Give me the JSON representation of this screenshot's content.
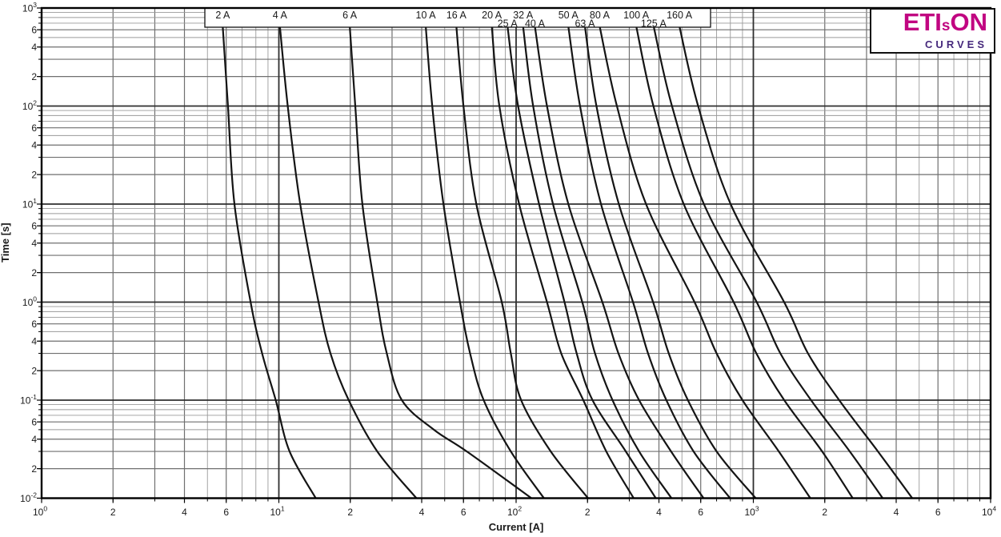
{
  "page": {
    "background": "#ffffff"
  },
  "logo": {
    "eti": "ETI",
    "s": "s",
    "on": "ON",
    "curves": "CURVES",
    "magenta": "#c10581",
    "purple": "#46297c"
  },
  "colors": {
    "curve": "#141414",
    "grid_minor": "#9a9a9a",
    "grid_minor_emph": "#6f6f6f",
    "grid_major": "#2f2f2f",
    "frame": "#000000",
    "text": "#1a1a1a",
    "band_fill": "#ffffff",
    "band_border": "#111111"
  },
  "chart_data": {
    "type": "line",
    "title": "",
    "xlabel": "Current [A]",
    "ylabel": "Time [s]",
    "xscale": "log",
    "yscale": "log",
    "xlim": [
      1,
      10000
    ],
    "ylim": [
      0.01,
      1000
    ],
    "grid": true,
    "legend_position": "top-band",
    "points_format": "[current_A, time_s]",
    "x_ticks": [
      {
        "m": "10",
        "e": "0",
        "v": 1
      },
      {
        "t": "2",
        "v": 2
      },
      {
        "t": "4",
        "v": 4
      },
      {
        "t": "6",
        "v": 6
      },
      {
        "m": "10",
        "e": "1",
        "v": 10
      },
      {
        "t": "2",
        "v": 20
      },
      {
        "t": "4",
        "v": 40
      },
      {
        "t": "6",
        "v": 60
      },
      {
        "m": "10",
        "e": "2",
        "v": 100
      },
      {
        "t": "2",
        "v": 200
      },
      {
        "t": "4",
        "v": 400
      },
      {
        "t": "6",
        "v": 600
      },
      {
        "m": "10",
        "e": "3",
        "v": 1000
      },
      {
        "t": "2",
        "v": 2000
      },
      {
        "t": "4",
        "v": 4000
      },
      {
        "t": "6",
        "v": 6000
      },
      {
        "m": "10",
        "e": "4",
        "v": 10000
      }
    ],
    "y_ticks": [
      {
        "m": "10",
        "e": "3",
        "v": 1000
      },
      {
        "t": "6",
        "v": 600
      },
      {
        "t": "4",
        "v": 400
      },
      {
        "t": "2",
        "v": 200
      },
      {
        "m": "10",
        "e": "2",
        "v": 100
      },
      {
        "t": "6",
        "v": 60
      },
      {
        "t": "4",
        "v": 40
      },
      {
        "t": "2",
        "v": 20
      },
      {
        "m": "10",
        "e": "1",
        "v": 10
      },
      {
        "t": "6",
        "v": 6
      },
      {
        "t": "4",
        "v": 4
      },
      {
        "t": "2",
        "v": 2
      },
      {
        "m": "10",
        "e": "0",
        "v": 1
      },
      {
        "t": "6",
        "v": 0.6
      },
      {
        "t": "4",
        "v": 0.4
      },
      {
        "t": "2",
        "v": 0.2
      },
      {
        "m": "10",
        "e": "-1",
        "v": 0.1
      },
      {
        "t": "6",
        "v": 0.06
      },
      {
        "t": "4",
        "v": 0.04
      },
      {
        "t": "2",
        "v": 0.02
      },
      {
        "m": "10",
        "e": "-2",
        "v": 0.01
      }
    ],
    "series": [
      {
        "name": "2 A",
        "rated_current_a": 2,
        "label_row": 1,
        "points": [
          [
            5.8,
            650
          ],
          [
            6.1,
            100
          ],
          [
            6.5,
            10
          ],
          [
            7.6,
            1
          ],
          [
            8.5,
            0.3
          ],
          [
            9.7,
            0.1
          ],
          [
            11.1,
            0.03
          ],
          [
            14.3,
            0.01
          ]
        ]
      },
      {
        "name": "4 A",
        "rated_current_a": 4,
        "label_row": 1,
        "points": [
          [
            10.1,
            650
          ],
          [
            10.9,
            100
          ],
          [
            12.3,
            10
          ],
          [
            14.7,
            1
          ],
          [
            16.5,
            0.3
          ],
          [
            19.7,
            0.1
          ],
          [
            26,
            0.03
          ],
          [
            38,
            0.01
          ]
        ]
      },
      {
        "name": "6 A",
        "rated_current_a": 6,
        "label_row": 1,
        "points": [
          [
            19.9,
            650
          ],
          [
            21,
            100
          ],
          [
            22.5,
            10
          ],
          [
            26,
            1
          ],
          [
            28.5,
            0.3
          ],
          [
            33,
            0.1
          ],
          [
            45,
            0.05
          ],
          [
            62,
            0.03
          ],
          [
            116,
            0.01
          ]
        ]
      },
      {
        "name": "10 A",
        "rated_current_a": 10,
        "label_row": 1,
        "points": [
          [
            41.6,
            650
          ],
          [
            44.3,
            100
          ],
          [
            49.4,
            10
          ],
          [
            58,
            1
          ],
          [
            64,
            0.3
          ],
          [
            73,
            0.1
          ],
          [
            95,
            0.03
          ],
          [
            131,
            0.01
          ]
        ]
      },
      {
        "name": "16 A",
        "rated_current_a": 16,
        "label_row": 1,
        "points": [
          [
            56,
            650
          ],
          [
            60,
            100
          ],
          [
            68,
            10
          ],
          [
            87,
            1
          ],
          [
            95,
            0.3
          ],
          [
            105,
            0.1
          ],
          [
            140,
            0.03
          ],
          [
            201,
            0.01
          ]
        ]
      },
      {
        "name": "20 A",
        "rated_current_a": 20,
        "label_row": 1,
        "points": [
          [
            79,
            650
          ],
          [
            85,
            100
          ],
          [
            103,
            10
          ],
          [
            135,
            1
          ],
          [
            155,
            0.3
          ],
          [
            192,
            0.1
          ],
          [
            240,
            0.03
          ],
          [
            313,
            0.01
          ]
        ]
      },
      {
        "name": "25 A",
        "rated_current_a": 25,
        "label_row": 2,
        "points": [
          [
            92,
            650
          ],
          [
            102,
            100
          ],
          [
            125,
            10
          ],
          [
            160,
            1
          ],
          [
            180,
            0.3
          ],
          [
            210,
            0.1
          ],
          [
            290,
            0.03
          ],
          [
            388,
            0.01
          ]
        ]
      },
      {
        "name": "32 A",
        "rated_current_a": 32,
        "label_row": 1,
        "points": [
          [
            107,
            650
          ],
          [
            118,
            100
          ],
          [
            143,
            10
          ],
          [
            190,
            1
          ],
          [
            215,
            0.3
          ],
          [
            255,
            0.1
          ],
          [
            330,
            0.03
          ],
          [
            452,
            0.01
          ]
        ]
      },
      {
        "name": "40 A",
        "rated_current_a": 40,
        "label_row": 2,
        "points": [
          [
            120,
            650
          ],
          [
            135,
            100
          ],
          [
            166,
            10
          ],
          [
            231,
            1
          ],
          [
            270,
            0.3
          ],
          [
            330,
            0.1
          ],
          [
            450,
            0.03
          ],
          [
            617,
            0.01
          ]
        ]
      },
      {
        "name": "50 A",
        "rated_current_a": 50,
        "label_row": 1,
        "points": [
          [
            166,
            650
          ],
          [
            186,
            100
          ],
          [
            228,
            10
          ],
          [
            311,
            1
          ],
          [
            360,
            0.3
          ],
          [
            430,
            0.1
          ],
          [
            560,
            0.03
          ],
          [
            798,
            0.01
          ]
        ]
      },
      {
        "name": "63 A",
        "rated_current_a": 63,
        "label_row": 2,
        "points": [
          [
            195,
            650
          ],
          [
            218,
            100
          ],
          [
            271,
            10
          ],
          [
            378,
            1
          ],
          [
            440,
            0.3
          ],
          [
            530,
            0.1
          ],
          [
            700,
            0.03
          ],
          [
            1023,
            0.01
          ]
        ]
      },
      {
        "name": "80 A",
        "rated_current_a": 80,
        "label_row": 1,
        "points": [
          [
            225,
            650
          ],
          [
            266,
            100
          ],
          [
            353,
            10
          ],
          [
            565,
            1
          ],
          [
            700,
            0.3
          ],
          [
            900,
            0.1
          ],
          [
            1280,
            0.03
          ],
          [
            1738,
            0.01
          ]
        ]
      },
      {
        "name": "100 A",
        "rated_current_a": 100,
        "label_row": 1,
        "points": [
          [
            321,
            650
          ],
          [
            379,
            100
          ],
          [
            509,
            10
          ],
          [
            826,
            1
          ],
          [
            1030,
            0.3
          ],
          [
            1350,
            0.1
          ],
          [
            1950,
            0.03
          ],
          [
            2624,
            0.01
          ]
        ]
      },
      {
        "name": "125 A",
        "rated_current_a": 125,
        "label_row": 2,
        "points": [
          [
            380,
            650
          ],
          [
            454,
            100
          ],
          [
            619,
            10
          ],
          [
            1033,
            1
          ],
          [
            1300,
            0.3
          ],
          [
            1750,
            0.1
          ],
          [
            2550,
            0.03
          ],
          [
            3508,
            0.01
          ]
        ]
      },
      {
        "name": "160 A",
        "rated_current_a": 160,
        "label_row": 1,
        "points": [
          [
            488,
            650
          ],
          [
            585,
            100
          ],
          [
            802,
            10
          ],
          [
            1349,
            1
          ],
          [
            1700,
            0.3
          ],
          [
            2300,
            0.1
          ],
          [
            3350,
            0.03
          ],
          [
            4677,
            0.01
          ]
        ]
      }
    ]
  }
}
